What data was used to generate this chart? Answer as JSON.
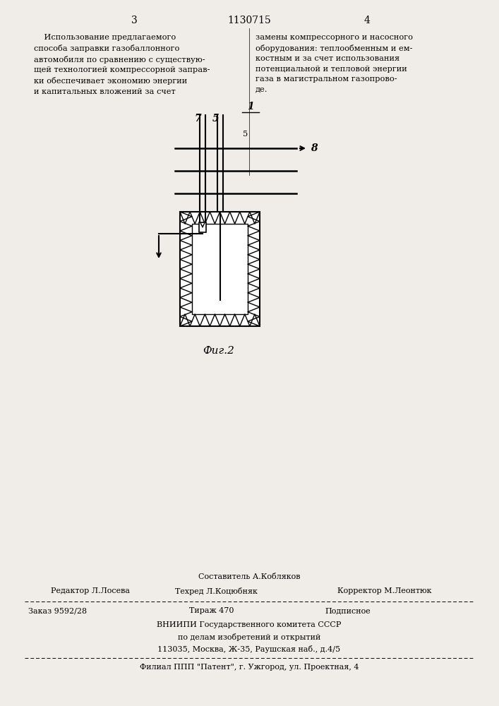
{
  "bg_color": "#f0ede8",
  "page_number_left": "3",
  "page_number_center": "1130715",
  "page_number_right": "4",
  "text_left": "    Использование предлагаемого\nспособа заправки газобаллонного\nавтомобиля по сравнению с существую-\nщей технологией компрессорной заправ-\nки обеспечивает экономию энергии\nи капитальных вложений за счет",
  "text_right": "замены компрессорного и насосного\nоборудования: теплообменным и ем-\nкостным и за счет использования\nпотенциальной и тепловой энергии\nгаза в магистральном газопрово-\nде.",
  "line_number_5": "5",
  "fig_label": "Фиг.2",
  "label_1": "1",
  "label_5": "5",
  "label_7": "7",
  "label_8": "8",
  "footer_sestavitel": "Составитель А.Кобляков",
  "footer_redaktor": "Редактор Л.Лосева",
  "footer_tekhred": "Техред Л.Коцюбняк",
  "footer_korrektor": "Корректор М.Леонтюк",
  "footer_order": "Заказ 9592/28",
  "footer_tirazh": "Тираж 470",
  "footer_podpisnoe": "Подписное",
  "footer_vniip1": "ВНИИПИ Государственного комитета СССР",
  "footer_vniip2": "по делам изобретений и открытий",
  "footer_vniip3": "113035, Москва, Ж-35, Раушская наб., д.4/5",
  "footer_filial": "Филиал ППП \"Патент\", г. Ужгород, ул. Проектная, 4"
}
